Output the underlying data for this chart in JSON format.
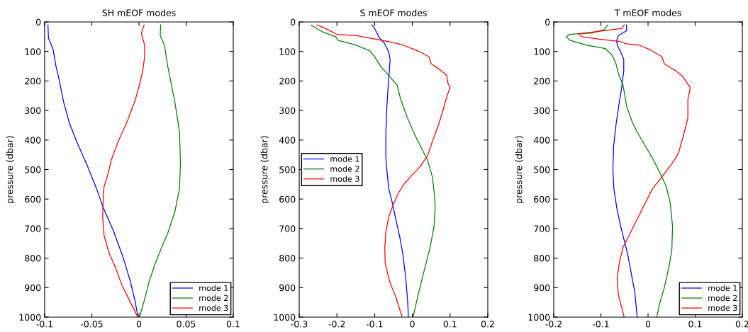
{
  "chart_data": [
    {
      "type": "line",
      "title": "SH mEOF modes",
      "ylabel": "pressure (dbar)",
      "xlim": [
        -0.1,
        0.1
      ],
      "xticks": [
        -0.1,
        -0.05,
        0,
        0.05,
        0.1
      ],
      "ylim": [
        1000,
        0
      ],
      "yticks": [
        0,
        100,
        200,
        300,
        400,
        500,
        600,
        700,
        800,
        900,
        1000
      ],
      "grid": false,
      "legend": "bottom right",
      "series": [
        {
          "name": "mode 1",
          "color": "#0000ff",
          "x": [
            -0.0965,
            -0.096,
            -0.091,
            -0.088,
            -0.0845,
            -0.08,
            -0.074,
            -0.065,
            -0.055,
            -0.045,
            -0.038,
            -0.027,
            -0.017,
            -0.0095,
            -0.0045,
            -0.001
          ],
          "values": [
            10,
            54,
            94,
            150,
            198,
            270,
            341,
            413,
            485,
            565,
            628,
            708,
            796,
            875,
            940,
            1000
          ]
        },
        {
          "name": "mode 2",
          "color": "#008000",
          "x": [
            0.023,
            0.0225,
            0.027,
            0.0305,
            0.038,
            0.043,
            0.044,
            0.043,
            0.038,
            0.0305,
            0.023,
            0.017,
            0.0105,
            0.006,
            0.0005
          ],
          "values": [
            10,
            46,
            78,
            150,
            270,
            373,
            477,
            565,
            644,
            716,
            772,
            820,
            883,
            940,
            1000
          ]
        },
        {
          "name": "mode 3",
          "color": "#ff0000",
          "x": [
            0.0055,
            0.0025,
            0.006,
            0.006,
            0.004,
            0.0005,
            -0.0045,
            -0.012,
            -0.022,
            -0.0295,
            -0.033,
            -0.037,
            -0.038,
            -0.0385,
            -0.037,
            -0.032,
            -0.0245,
            -0.018,
            -0.0095,
            -0.002,
            -0.001
          ],
          "values": [
            10,
            38,
            78,
            118,
            166,
            214,
            270,
            333,
            405,
            469,
            517,
            557,
            604,
            660,
            724,
            780,
            836,
            892,
            947,
            995,
            1000
          ]
        }
      ]
    },
    {
      "type": "line",
      "title": "S mEOF modes",
      "ylabel": "pressure (dbar)",
      "xlim": [
        -0.3,
        0.2
      ],
      "xticks": [
        -0.3,
        -0.2,
        -0.1,
        0,
        0.1,
        0.2
      ],
      "ylim": [
        1000,
        0
      ],
      "yticks": [
        0,
        100,
        200,
        300,
        400,
        500,
        600,
        700,
        800,
        900,
        1000
      ],
      "grid": false,
      "legend": "left",
      "series": [
        {
          "name": "mode 1",
          "color": "#0000ff",
          "x": [
            -0.1075,
            -0.1,
            -0.0875,
            -0.075,
            -0.0625,
            -0.059,
            -0.061,
            -0.064,
            -0.0675,
            -0.07,
            -0.0705,
            -0.069,
            -0.0625,
            -0.053,
            -0.044,
            -0.034,
            -0.025,
            -0.0175,
            -0.0125,
            -0.0105
          ],
          "values": [
            10,
            22,
            54,
            70,
            102,
            126,
            166,
            214,
            285,
            365,
            445,
            485,
            565,
            613,
            668,
            724,
            788,
            868,
            947,
            1000
          ]
        },
        {
          "name": "mode 2",
          "color": "#008000",
          "x": [
            -0.269,
            -0.2375,
            -0.203,
            -0.197,
            -0.15,
            -0.1125,
            -0.1,
            -0.084,
            -0.0625,
            -0.0405,
            -0.031,
            -0.0155,
            0.006,
            0.0185,
            0.0405,
            0.053,
            0.059,
            0.0605,
            0.0575,
            0.047,
            0.031,
            0.0155,
            0.002
          ],
          "values": [
            10,
            34,
            50,
            62,
            78,
            98,
            118,
            150,
            182,
            214,
            262,
            317,
            381,
            413,
            469,
            525,
            589,
            628,
            692,
            764,
            844,
            923,
            1000
          ]
        },
        {
          "name": "mode 3",
          "color": "#ff0000",
          "x": [
            -0.253,
            -0.231,
            -0.2,
            -0.15,
            -0.1,
            -0.05,
            -0.025,
            0.006,
            0.022,
            0.044,
            0.05,
            0.069,
            0.091,
            0.094,
            0.1,
            0.091,
            0.081,
            0.069,
            0.053,
            0.0405,
            0.0185,
            0,
            -0.022,
            -0.0375,
            -0.051,
            -0.0625,
            -0.07,
            -0.073,
            -0.072,
            -0.059,
            -0.044,
            -0.027
          ],
          "values": [
            10,
            22,
            42,
            46,
            58,
            70,
            78,
            94,
            102,
            118,
            142,
            158,
            180,
            206,
            222,
            254,
            301,
            349,
            405,
            453,
            493,
            517,
            549,
            581,
            620,
            660,
            708,
            764,
            820,
            884,
            931,
            1000
          ]
        }
      ]
    },
    {
      "type": "line",
      "title": "T mEOF modes",
      "ylabel": "pressure (dbar)",
      "xlim": [
        -0.2,
        0.2
      ],
      "xticks": [
        -0.2,
        -0.1,
        0,
        0.1,
        0.2
      ],
      "ylim": [
        1000,
        0
      ],
      "yticks": [
        0,
        100,
        200,
        300,
        400,
        500,
        600,
        700,
        800,
        900,
        1000
      ],
      "grid": false,
      "legend": "bottom right",
      "series": [
        {
          "name": "mode 1",
          "color": "#0000ff",
          "x": [
            -0.0455,
            -0.0455,
            -0.063,
            -0.0665,
            -0.0655,
            -0.058,
            -0.0515,
            -0.0515,
            -0.0565,
            -0.0615,
            -0.068,
            -0.073,
            -0.0745,
            -0.0725,
            -0.0665,
            -0.058,
            -0.0505,
            -0.043,
            -0.0355,
            -0.028,
            -0.023
          ],
          "values": [
            10,
            30,
            46,
            62,
            78,
            102,
            126,
            166,
            230,
            277,
            349,
            421,
            501,
            565,
            628,
            692,
            740,
            788,
            852,
            916,
            1000
          ]
        },
        {
          "name": "mode 2",
          "color": "#008000",
          "x": [
            -0.0855,
            -0.093,
            -0.121,
            -0.148,
            -0.166,
            -0.173,
            -0.166,
            -0.131,
            -0.0905,
            -0.0755,
            -0.068,
            -0.063,
            -0.053,
            -0.0455,
            -0.033,
            -0.023,
            -0.0055,
            0.012,
            0.0245,
            0.0385,
            0.047,
            0.052,
            0.0505,
            0.0445,
            0.0345,
            0.0245,
            0.0185
          ],
          "values": [
            10,
            26,
            38,
            40,
            42,
            50,
            62,
            78,
            90,
            114,
            142,
            174,
            214,
            285,
            341,
            373,
            421,
            469,
            509,
            557,
            612,
            692,
            772,
            828,
            900,
            955,
            1000
          ]
        },
        {
          "name": "mode 3",
          "color": "#ff0000",
          "x": [
            -0.0505,
            -0.0555,
            -0.0955,
            -0.148,
            -0.14,
            -0.1055,
            -0.0605,
            -0.0455,
            -0.0205,
            0.0045,
            0.0295,
            0.0345,
            0.0595,
            0.072,
            0.0895,
            0.0845,
            0.0845,
            0.077,
            0.0645,
            0.052,
            0.0295,
            0.0095,
            -0.008,
            -0.023,
            -0.0405,
            -0.053,
            -0.0605,
            -0.0655,
            -0.063,
            -0.0505
          ],
          "values": [
            10,
            22,
            30,
            40,
            50,
            58,
            66,
            74,
            78,
            94,
            118,
            142,
            166,
            182,
            222,
            262,
            325,
            373,
            445,
            477,
            525,
            565,
            620,
            668,
            724,
            764,
            812,
            868,
            924,
            1000
          ]
        }
      ]
    }
  ]
}
